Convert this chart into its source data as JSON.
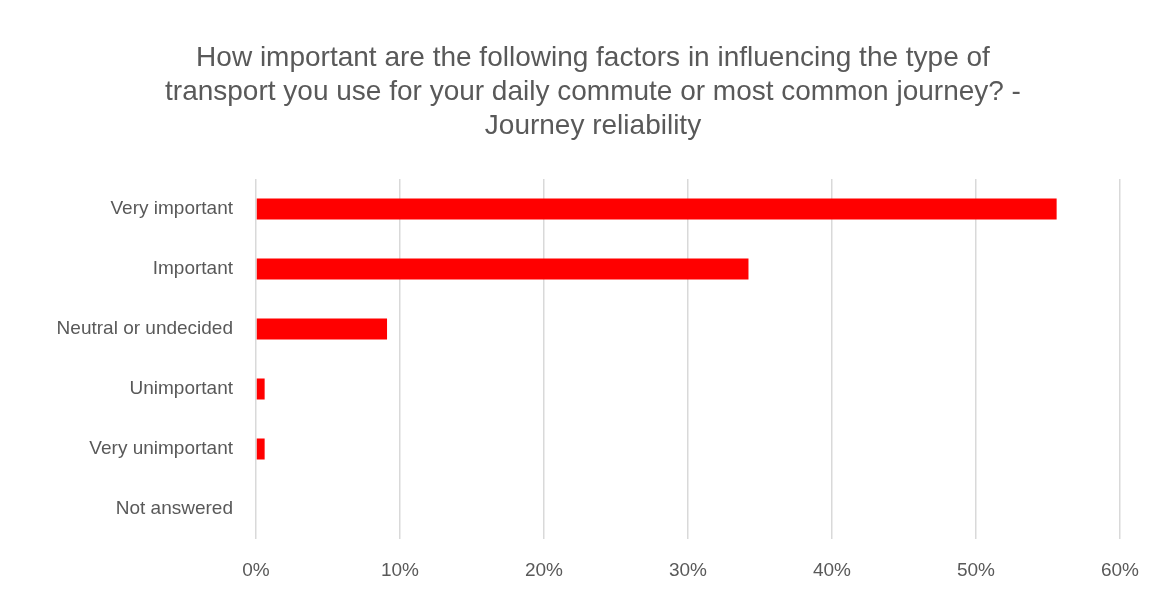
{
  "chart_data": {
    "type": "bar",
    "orientation": "horizontal",
    "title": "How important are the following factors in influencing the type of transport you use for your daily commute or most common journey? - Journey reliability",
    "categories": [
      "Very important",
      "Important",
      "Neutral or undecided",
      "Unimportant",
      "Very unimportant",
      "Not answered"
    ],
    "values": [
      55.6,
      34.2,
      9.1,
      0.6,
      0.6,
      0
    ],
    "color": "#ff0000",
    "xlim": [
      0,
      60
    ],
    "xticks": [
      {
        "value": 0,
        "label": "0%"
      },
      {
        "value": 10,
        "label": "10%"
      },
      {
        "value": 20,
        "label": "20%"
      },
      {
        "value": 30,
        "label": "30%"
      },
      {
        "value": 40,
        "label": "40%"
      },
      {
        "value": 50,
        "label": "50%"
      },
      {
        "value": 60,
        "label": "60%"
      }
    ],
    "grid": "x"
  }
}
